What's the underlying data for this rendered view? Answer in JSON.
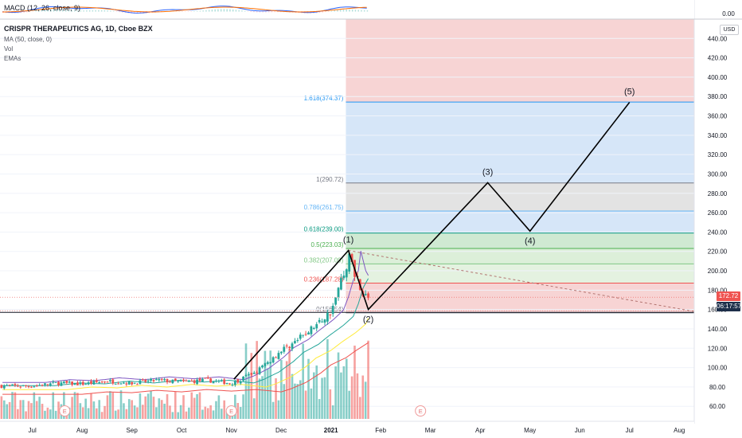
{
  "macd_label": "MACD (12, 26, close, 9)",
  "macd_value": "0.00",
  "header": {
    "title": "CRISPR THERAPEUTICS AG, 1D, Cboe BZX",
    "indicators": [
      "MA (50, close, 0)",
      "Vol",
      "EMAs"
    ]
  },
  "currency": "USD",
  "price_tag": "172.72",
  "timer_tag": "06:17:57",
  "colors": {
    "up": "#26a69a",
    "down": "#ef5350",
    "wave_line": "#000000",
    "fib_red": "#f7d4d4",
    "fib_blue": "#d6e6f8",
    "fib_gray": "#e3e3e3",
    "fib_green": "#dcefd9",
    "price_tag": "#ef5350",
    "timer_tag": "#1e2f4a"
  },
  "chart_data": {
    "type": "candlestick",
    "title": "CRISPR THERAPEUTICS AG, 1D, Cboe BZX",
    "y_axis": {
      "min": 47,
      "max": 460,
      "ticks": [
        60,
        80,
        100,
        120,
        140,
        160,
        180,
        200,
        220,
        240,
        260,
        280,
        300,
        320,
        340,
        360,
        380,
        400,
        420,
        440
      ]
    },
    "x_axis": {
      "labels": [
        "Jul",
        "Aug",
        "Sep",
        "Oct",
        "Nov",
        "Dec",
        "2021",
        "Feb",
        "Mar",
        "Apr",
        "May",
        "Jun",
        "Jul",
        "Aug"
      ],
      "domain_months": [
        -0.65,
        13.3
      ]
    },
    "last_bar_month": 6.75,
    "price_samples": [
      [
        0.0,
        81
      ],
      [
        0.5,
        84
      ],
      [
        1.0,
        83
      ],
      [
        1.5,
        86
      ],
      [
        2.0,
        84
      ],
      [
        2.5,
        87
      ],
      [
        3.0,
        85
      ],
      [
        3.5,
        87
      ],
      [
        4.0,
        84
      ],
      [
        4.2,
        88
      ],
      [
        4.5,
        96
      ],
      [
        4.8,
        108
      ],
      [
        5.0,
        118
      ],
      [
        5.3,
        127
      ],
      [
        5.5,
        136
      ],
      [
        5.8,
        148
      ],
      [
        6.0,
        158
      ],
      [
        6.1,
        172
      ],
      [
        6.2,
        190
      ],
      [
        6.3,
        200
      ],
      [
        6.35,
        221
      ],
      [
        6.45,
        200
      ],
      [
        6.55,
        190
      ],
      [
        6.65,
        175
      ],
      [
        6.75,
        172.72
      ]
    ],
    "earnings_markers_month": [
      0.65,
      4.0,
      7.8
    ],
    "earnings_label": "E",
    "elliott_waves": {
      "points": [
        {
          "month": 4.05,
          "price": 88,
          "label": ""
        },
        {
          "month": 6.35,
          "price": 221,
          "label": "(1)"
        },
        {
          "month": 6.75,
          "price": 160,
          "label": "(2)"
        },
        {
          "month": 9.15,
          "price": 291,
          "label": "(3)"
        },
        {
          "month": 10.0,
          "price": 241,
          "label": "(4)"
        },
        {
          "month": 12.0,
          "price": 374,
          "label": "(5)"
        }
      ]
    },
    "fibonacci": {
      "x_start_month": 6.3,
      "x_end_month": 13.3,
      "levels": [
        {
          "ratio_label": "0",
          "price": 156.54
        },
        {
          "ratio_label": "0.236",
          "price": 187.28
        },
        {
          "ratio_label": "0.382",
          "price": 207.09
        },
        {
          "ratio_label": "0.5",
          "price": 223.03
        },
        {
          "ratio_label": "0.618",
          "price": 239.0
        },
        {
          "ratio_label": "0.786",
          "price": 261.75
        },
        {
          "ratio_label": "1",
          "price": 290.72
        },
        {
          "ratio_label": "1.618",
          "price": 374.37
        }
      ],
      "level_labels": [
        "0(156.54)",
        "0.236(187.28)",
        "0.382(207.09)",
        "0.5(223.03)",
        "0.618(239.00)",
        "0.786(261.75)",
        "1(290.72)",
        "1.618(374.37)"
      ]
    },
    "trend_dashed": {
      "from": [
        6.35,
        221
      ],
      "to": [
        13.3,
        158
      ]
    },
    "horizontal_line_price": 157
  }
}
